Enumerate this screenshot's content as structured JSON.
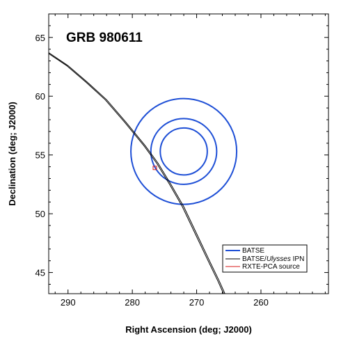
{
  "chart_data": {
    "type": "line",
    "title": "GRB 980611",
    "xlabel": "Right Ascension (deg; J2000)",
    "ylabel": "Declination (deg; J2000)",
    "xlim": [
      293,
      249.5
    ],
    "ylim": [
      43.2,
      67
    ],
    "x_reversed": true,
    "xticks": [
      290,
      280,
      270,
      260
    ],
    "yticks": [
      45,
      50,
      55,
      60,
      65
    ],
    "grid": false,
    "legend_position": "bottom-right",
    "colors": {
      "batse": "#1e4fd6",
      "ipn": "#000000",
      "rxte": "#d81b1b"
    },
    "series": [
      {
        "name": "BATSE",
        "kind": "circles",
        "center": [
          272.0,
          55.3
        ],
        "radii_dec_deg": [
          2.0,
          2.8,
          4.5
        ]
      },
      {
        "name": "BATSE/Ulysses IPN",
        "kind": "annulus-pair",
        "x": [
          293.0,
          290.0,
          287.0,
          284.0,
          281.0,
          278.0,
          276.0,
          274.0,
          272.0,
          270.0,
          268.0,
          266.5,
          265.6
        ],
        "y": [
          63.7,
          62.6,
          61.2,
          59.7,
          57.8,
          55.8,
          54.3,
          52.5,
          50.6,
          48.3,
          46.0,
          44.3,
          43.2
        ],
        "offset_ra": 0.22
      },
      {
        "name": "RXTE-PCA source",
        "kind": "square",
        "x": [
          276.5
        ],
        "y": [
          53.9
        ]
      }
    ],
    "legend": [
      {
        "label_prefix": "BATSE",
        "label_italic": "",
        "label_suffix": ""
      },
      {
        "label_prefix": "BATSE/",
        "label_italic": "Ulysses",
        "label_suffix": " IPN"
      },
      {
        "label_prefix": "RXTE-PCA source",
        "label_italic": "",
        "label_suffix": ""
      }
    ]
  }
}
